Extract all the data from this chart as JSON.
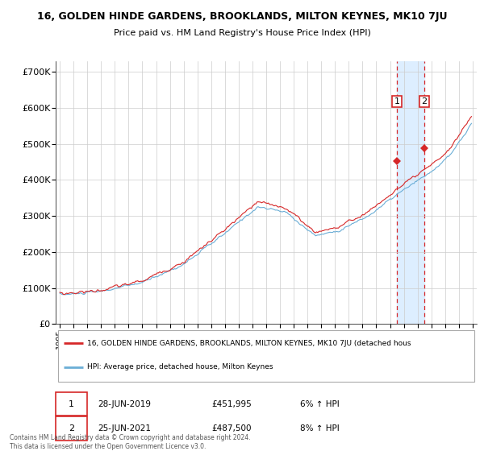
{
  "title": "16, GOLDEN HINDE GARDENS, BROOKLANDS, MILTON KEYNES, MK10 7JU",
  "subtitle": "Price paid vs. HM Land Registry's House Price Index (HPI)",
  "legend_line1": "16, GOLDEN HINDE GARDENS, BROOKLANDS, MILTON KEYNES, MK10 7JU (detached hous",
  "legend_line2": "HPI: Average price, detached house, Milton Keynes",
  "annotation1_date": "28-JUN-2019",
  "annotation1_price": "£451,995",
  "annotation1_hpi": "6% ↑ HPI",
  "annotation2_date": "25-JUN-2021",
  "annotation2_price": "£487,500",
  "annotation2_hpi": "8% ↑ HPI",
  "footer": "Contains HM Land Registry data © Crown copyright and database right 2024.\nThis data is licensed under the Open Government Licence v3.0.",
  "hpi_color": "#6baed6",
  "price_color": "#d62728",
  "annotation_color": "#d62728",
  "shade_color": "#ddeeff",
  "ylim": [
    0,
    730000
  ],
  "yticks": [
    0,
    100000,
    200000,
    300000,
    400000,
    500000,
    600000,
    700000
  ],
  "ytick_labels": [
    "£0",
    "£100K",
    "£200K",
    "£300K",
    "£400K",
    "£500K",
    "£600K",
    "£700K"
  ],
  "sale1_year": 2019.5,
  "sale1_price": 451995,
  "sale2_year": 2021.5,
  "sale2_price": 487500,
  "xlim_start": 1994.7,
  "xlim_end": 2025.3,
  "xticks": [
    1995,
    1996,
    1997,
    1998,
    1999,
    2000,
    2001,
    2002,
    2003,
    2004,
    2005,
    2006,
    2007,
    2008,
    2009,
    2010,
    2011,
    2012,
    2013,
    2014,
    2015,
    2016,
    2017,
    2018,
    2019,
    2020,
    2021,
    2022,
    2023,
    2024,
    2025
  ]
}
